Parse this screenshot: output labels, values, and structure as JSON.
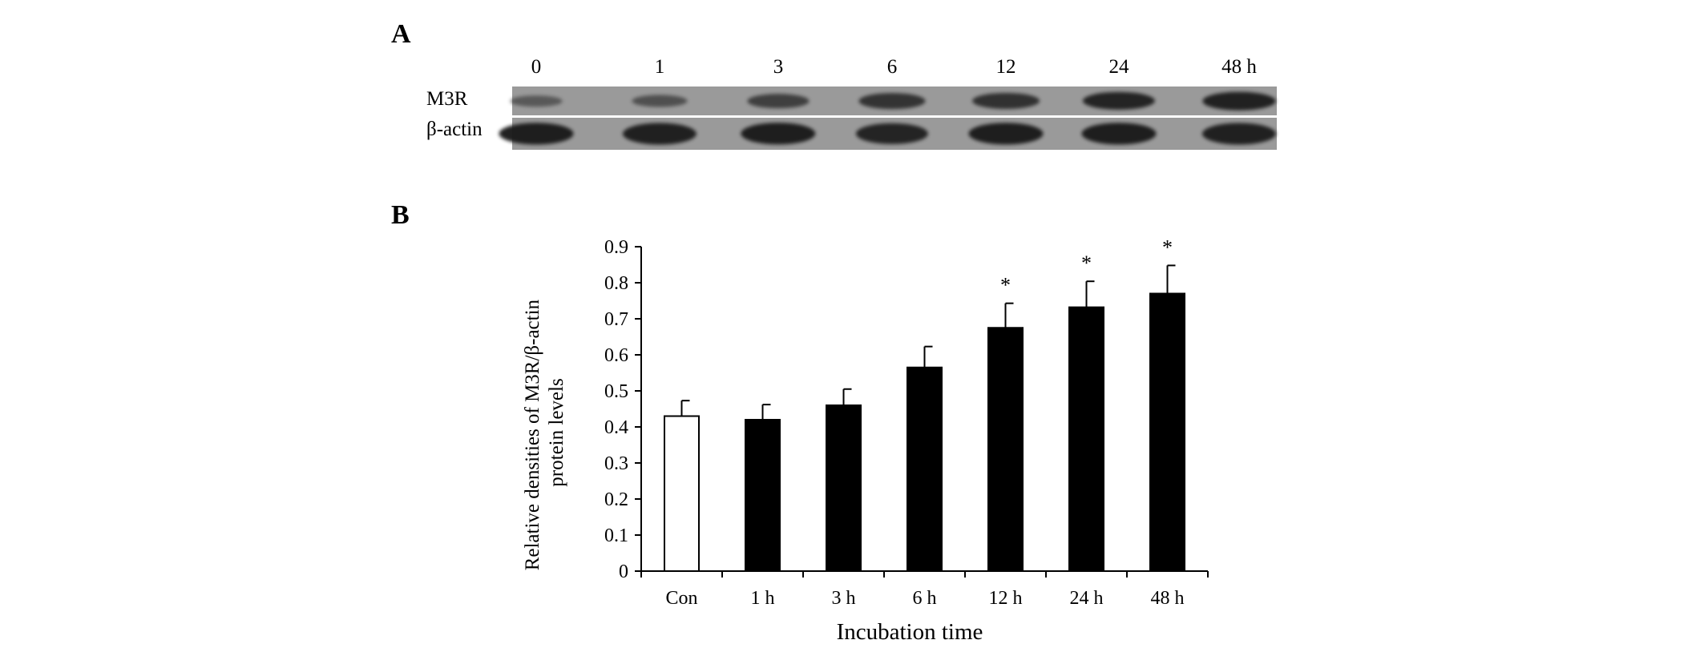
{
  "panels": {
    "a": "A",
    "b": "B"
  },
  "blot": {
    "lanes": [
      "0",
      "1",
      "3",
      "6",
      "12",
      "24",
      "48 h"
    ],
    "rows": [
      {
        "label": "M3R",
        "intensity": [
          0.25,
          0.35,
          0.55,
          0.7,
          0.72,
          0.88,
          0.9
        ]
      },
      {
        "label": "β-actin",
        "intensity": [
          0.95,
          0.93,
          0.96,
          0.88,
          0.95,
          0.95,
          0.93
        ]
      }
    ],
    "colors": {
      "background": "#9a9a9a",
      "band": "#1a1a1a",
      "separator": "#ffffff"
    }
  },
  "chart_data": {
    "type": "bar",
    "xlabel": "Incubation time",
    "ylabel": [
      "Relative densities of M3R/β-actin",
      "protein levels"
    ],
    "ylim": [
      0,
      0.9
    ],
    "yticks": [
      "0",
      "0.1",
      "0.2",
      "0.3",
      "0.4",
      "0.5",
      "0.6",
      "0.7",
      "0.8",
      "0.9"
    ],
    "categories": [
      "Con",
      "1 h",
      "3 h",
      "6 h",
      "12 h",
      "24 h",
      "48 h"
    ],
    "values": [
      0.43,
      0.42,
      0.46,
      0.565,
      0.675,
      0.732,
      0.77
    ],
    "errors": [
      0.043,
      0.042,
      0.045,
      0.058,
      0.068,
      0.072,
      0.078
    ],
    "significance": [
      "",
      "",
      "",
      "",
      "*",
      "*",
      "*"
    ],
    "bar_colors": [
      "#ffffff",
      "#000000",
      "#000000",
      "#000000",
      "#000000",
      "#000000",
      "#000000"
    ],
    "bar_edge_color": "#000000",
    "grid": false,
    "legend": "none"
  }
}
